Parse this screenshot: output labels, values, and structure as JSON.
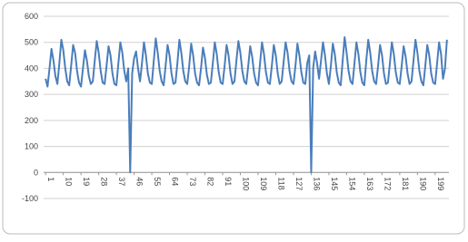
{
  "chart_data": {
    "type": "line",
    "color": "#4a7ebb",
    "grid": true,
    "x": [
      1,
      2,
      3,
      4,
      5,
      6,
      7,
      8,
      9,
      10,
      11,
      12,
      13,
      14,
      15,
      16,
      17,
      18,
      19,
      20,
      21,
      22,
      23,
      24,
      25,
      26,
      27,
      28,
      29,
      30,
      31,
      32,
      33,
      34,
      35,
      36,
      37,
      38,
      39,
      40,
      41,
      42,
      43,
      44,
      45,
      46,
      47,
      48,
      49,
      50,
      51,
      52,
      53,
      54,
      55,
      56,
      57,
      58,
      59,
      60,
      61,
      62,
      63,
      64,
      65,
      66,
      67,
      68,
      69,
      70,
      71,
      72,
      73,
      74,
      75,
      76,
      77,
      78,
      79,
      80,
      81,
      82,
      83,
      84,
      85,
      86,
      87,
      88,
      89,
      90,
      91,
      92,
      93,
      94,
      95,
      96,
      97,
      98,
      99,
      100,
      101,
      102,
      103,
      104,
      105,
      106,
      107,
      108,
      109,
      110,
      111,
      112,
      113,
      114,
      115,
      116,
      117,
      118,
      119,
      120,
      121,
      122,
      123,
      124,
      125,
      126,
      127,
      128,
      129,
      130,
      131,
      132,
      133,
      134,
      135,
      136,
      137,
      138,
      139,
      140,
      141,
      142,
      143,
      144,
      145,
      146,
      147,
      148,
      149,
      150,
      151,
      152,
      153,
      154,
      155,
      156,
      157,
      158,
      159,
      160,
      161,
      162,
      163,
      164,
      165,
      166,
      167,
      168,
      169,
      170,
      171,
      172,
      173,
      174,
      175,
      176,
      177,
      178,
      179,
      180,
      181,
      182,
      183,
      184,
      185,
      186,
      187,
      188,
      189,
      190,
      191,
      192,
      193,
      194,
      195,
      196,
      197,
      198,
      199,
      200,
      201,
      202,
      203,
      204,
      205
    ],
    "values": [
      360,
      330,
      400,
      475,
      430,
      370,
      340,
      420,
      510,
      470,
      400,
      350,
      335,
      410,
      490,
      460,
      390,
      345,
      330,
      400,
      470,
      430,
      370,
      340,
      350,
      430,
      505,
      460,
      390,
      345,
      340,
      410,
      485,
      450,
      380,
      340,
      335,
      420,
      500,
      460,
      390,
      350,
      400,
      0,
      380,
      440,
      465,
      400,
      350,
      420,
      500,
      450,
      380,
      345,
      340,
      430,
      515,
      460,
      390,
      350,
      335,
      410,
      490,
      450,
      380,
      340,
      345,
      420,
      510,
      460,
      390,
      350,
      340,
      410,
      495,
      450,
      380,
      345,
      335,
      400,
      480,
      440,
      375,
      340,
      345,
      420,
      500,
      455,
      385,
      345,
      340,
      410,
      490,
      450,
      380,
      340,
      350,
      430,
      505,
      460,
      390,
      350,
      340,
      410,
      485,
      445,
      380,
      345,
      335,
      420,
      500,
      455,
      385,
      345,
      340,
      410,
      490,
      450,
      380,
      340,
      350,
      425,
      500,
      460,
      390,
      350,
      340,
      410,
      495,
      450,
      385,
      345,
      340,
      420,
      450,
      0,
      400,
      465,
      420,
      360,
      430,
      500,
      450,
      380,
      340,
      410,
      495,
      455,
      385,
      345,
      335,
      430,
      520,
      460,
      390,
      350,
      340,
      420,
      500,
      455,
      385,
      345,
      335,
      430,
      510,
      460,
      390,
      350,
      340,
      410,
      490,
      450,
      380,
      340,
      345,
      420,
      500,
      455,
      385,
      345,
      340,
      410,
      485,
      445,
      380,
      340,
      350,
      430,
      510,
      460,
      390,
      350,
      335,
      410,
      490,
      450,
      380,
      345,
      340,
      420,
      500,
      455,
      360,
      400,
      510
    ],
    "xlim": [
      0,
      206
    ],
    "xticks": [
      1,
      10,
      19,
      28,
      37,
      46,
      55,
      64,
      73,
      82,
      91,
      100,
      109,
      118,
      127,
      136,
      145,
      154,
      163,
      172,
      181,
      190,
      199
    ],
    "ylim": [
      -100,
      600
    ],
    "yticks": [
      -100,
      0,
      100,
      200,
      300,
      400,
      500,
      600
    ]
  }
}
